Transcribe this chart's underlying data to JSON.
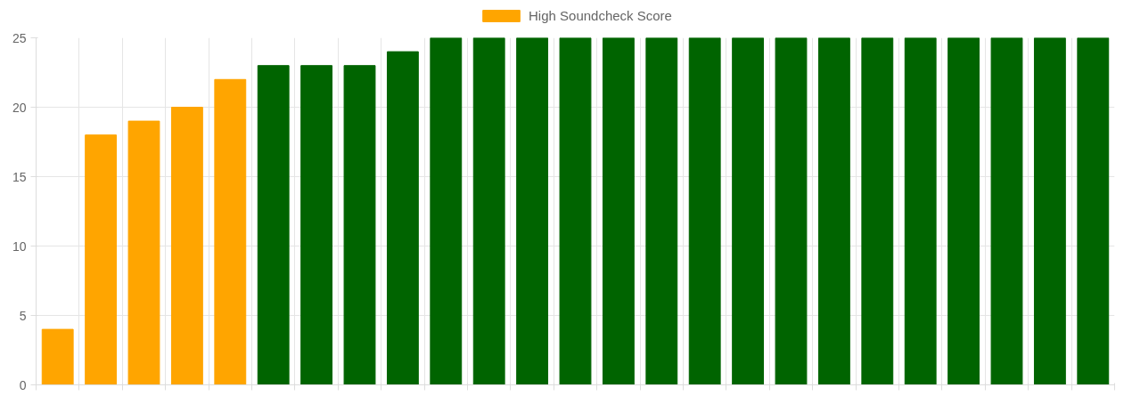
{
  "chart_data": {
    "type": "bar",
    "categories": [
      null,
      null,
      null,
      null,
      null,
      null,
      null,
      null,
      null,
      null,
      null,
      null,
      null,
      null,
      null,
      null,
      null,
      null,
      null,
      null,
      null,
      null,
      null,
      null,
      null
    ],
    "series": [
      {
        "name": "High Soundcheck Score",
        "color": "#ffa500",
        "colors": [
          "#ffa500",
          "#ffa500",
          "#ffa500",
          "#ffa500",
          "#ffa500",
          "#006400",
          "#006400",
          "#006400",
          "#006400",
          "#006400",
          "#006400",
          "#006400",
          "#006400",
          "#006400",
          "#006400",
          "#006400",
          "#006400",
          "#006400",
          "#006400",
          "#006400",
          "#006400",
          "#006400",
          "#006400",
          "#006400",
          "#006400"
        ],
        "values": [
          4,
          18,
          19,
          20,
          22,
          23,
          23,
          23,
          24,
          25,
          25,
          25,
          25,
          25,
          25,
          25,
          25,
          25,
          25,
          25,
          25,
          25,
          25,
          25,
          25
        ]
      }
    ],
    "ylim": [
      0,
      25
    ],
    "yticks": [
      0,
      5,
      10,
      15,
      20,
      25
    ],
    "grid": true,
    "legend": "top",
    "tick_labels": "y"
  }
}
